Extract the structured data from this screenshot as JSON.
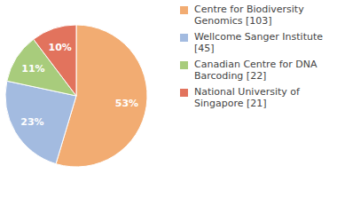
{
  "chart_data": {
    "type": "pie",
    "categories": [
      "Centre for Biodiversity Genomics [103]",
      "Wellcome Sanger Institute [45]",
      "Canadian Centre for DNA Barcoding [22]",
      "National University of Singapore [21]"
    ],
    "values": [
      53,
      23,
      11,
      10
    ],
    "value_labels": [
      "53%",
      "23%",
      "11%",
      "10%"
    ],
    "colors": [
      "#f2ac72",
      "#a3bbe0",
      "#a8cc7c",
      "#e2735d"
    ],
    "data_labels": true,
    "legend": "right"
  }
}
